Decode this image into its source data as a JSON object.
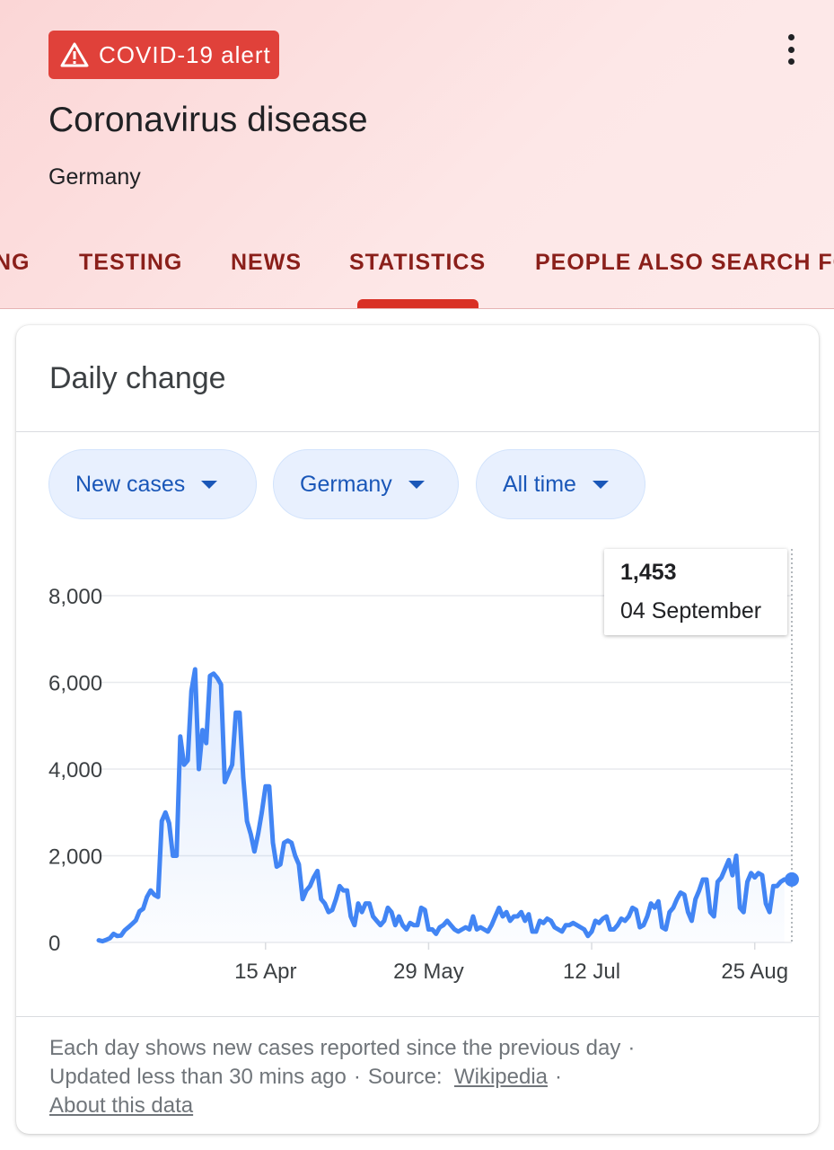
{
  "header": {
    "alert_label": "COVID-19 alert",
    "title": "Coronavirus disease",
    "subtitle": "Germany",
    "tabs": [
      {
        "label": "NG"
      },
      {
        "label": "TESTING"
      },
      {
        "label": "NEWS"
      },
      {
        "label": "STATISTICS",
        "selected": true
      },
      {
        "label": "PEOPLE ALSO SEARCH FOR"
      }
    ]
  },
  "card": {
    "title": "Daily change",
    "filters": [
      {
        "label": "New cases"
      },
      {
        "label": "Germany"
      },
      {
        "label": "All time"
      }
    ],
    "tooltip": {
      "value": "1,453",
      "date": "04 September"
    },
    "footer": {
      "line1": "Each day shows new cases reported since the previous day",
      "updated": "Updated less than 30 mins ago",
      "source_label": "Source:",
      "source_link": "Wikipedia",
      "about_link": "About this data",
      "separator": "·"
    }
  },
  "colors": {
    "line": "#4285f4",
    "alert": "#e0413a",
    "tab_text": "#8a1f1a",
    "chip_text": "#1a57b8"
  },
  "icons": {
    "alert": "warning-triangle-icon",
    "menu": "more-vert-icon",
    "chip": "caret-down-icon"
  },
  "chart_data": {
    "type": "area",
    "ylim": [
      0,
      8000
    ],
    "yticks": [
      0,
      2000,
      4000,
      6000,
      8000
    ],
    "ytick_labels": [
      "0",
      "2,000",
      "4,000",
      "6,000",
      "8,000"
    ],
    "xlim": [
      "2020-03-01",
      "2020-09-04"
    ],
    "xticks": [
      {
        "date": "2020-04-15",
        "label": "15 Apr"
      },
      {
        "date": "2020-05-29",
        "label": "29 May"
      },
      {
        "date": "2020-07-12",
        "label": "12 Jul"
      },
      {
        "date": "2020-08-25",
        "label": "25 Aug"
      }
    ],
    "series": [
      {
        "start_date": "2020-03-01",
        "values": [
          50,
          30,
          60,
          100,
          200,
          150,
          160,
          280,
          350,
          430,
          510,
          720,
          780,
          1050,
          1200,
          1100,
          1050,
          2800,
          3000,
          2750,
          2000,
          2000,
          4750,
          4100,
          4200,
          5800,
          6300,
          4000,
          4900,
          4600,
          6150,
          6200,
          6100,
          5950,
          3700,
          3900,
          4100,
          5300,
          5300,
          3800,
          2800,
          2500,
          2100,
          2500,
          3000,
          3600,
          3600,
          2300,
          1750,
          1800,
          2300,
          2350,
          2300,
          2000,
          1800,
          1000,
          1200,
          1300,
          1500,
          1650,
          1000,
          900,
          700,
          750,
          1000,
          1300,
          1200,
          1200,
          600,
          400,
          900,
          700,
          900,
          900,
          600,
          500,
          400,
          500,
          800,
          700,
          400,
          600,
          400,
          300,
          450,
          400,
          400,
          800,
          750,
          300,
          300,
          200,
          350,
          400,
          500,
          400,
          300,
          250,
          300,
          350,
          300,
          600,
          300,
          350,
          300,
          250,
          400,
          600,
          800,
          600,
          700,
          500,
          600,
          600,
          700,
          500,
          650,
          250,
          250,
          500,
          450,
          550,
          500,
          350,
          300,
          250,
          400,
          400,
          450,
          400,
          350,
          300,
          150,
          250,
          500,
          450,
          550,
          600,
          300,
          300,
          400,
          550,
          500,
          600,
          800,
          750,
          350,
          400,
          600,
          900,
          800,
          950,
          350,
          300,
          700,
          800,
          1000,
          1150,
          1100,
          700,
          500,
          1000,
          1200,
          1450,
          1450,
          700,
          600,
          1400,
          1500,
          1700,
          1900,
          1550,
          2000,
          800,
          700,
          1400,
          1600,
          1500,
          1600,
          1550,
          900,
          700,
          1300,
          1300,
          1400,
          1453
        ]
      }
    ],
    "highlight": {
      "date": "2020-09-04",
      "value": 1453
    }
  }
}
